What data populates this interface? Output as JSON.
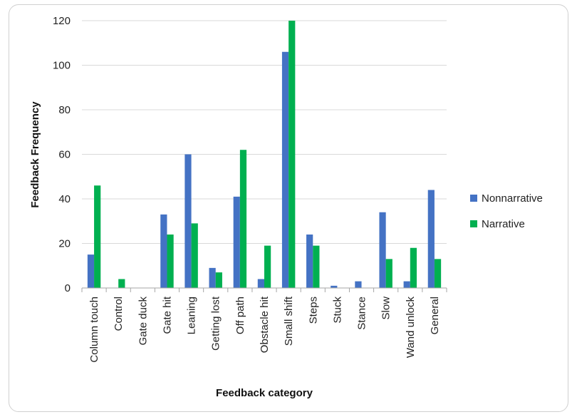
{
  "chart_data": {
    "type": "bar",
    "title": "",
    "xlabel": "Feedback category",
    "ylabel": "Feedback Frequency",
    "ylim": [
      0,
      120
    ],
    "yticks": [
      0,
      20,
      40,
      60,
      80,
      100,
      120
    ],
    "grid": true,
    "legend_position": "right",
    "categories": [
      "Column touch",
      "Control",
      "Gate duck",
      "Gate hit",
      "Leaning",
      "Getting lost",
      "Off path",
      "Obstacle hit",
      "Small shift",
      "Steps",
      "Stuck",
      "Stance",
      "Slow",
      "Wand unlock",
      "General"
    ],
    "series": [
      {
        "name": "Nonnarrative",
        "color": "#4472c4",
        "values": [
          15,
          0,
          0,
          33,
          60,
          9,
          41,
          4,
          106,
          24,
          1,
          3,
          34,
          3,
          44
        ]
      },
      {
        "name": "Narrative",
        "color": "#00b050",
        "values": [
          46,
          4,
          0,
          24,
          29,
          7,
          62,
          19,
          120,
          19,
          0,
          0,
          13,
          18,
          13
        ]
      }
    ]
  }
}
